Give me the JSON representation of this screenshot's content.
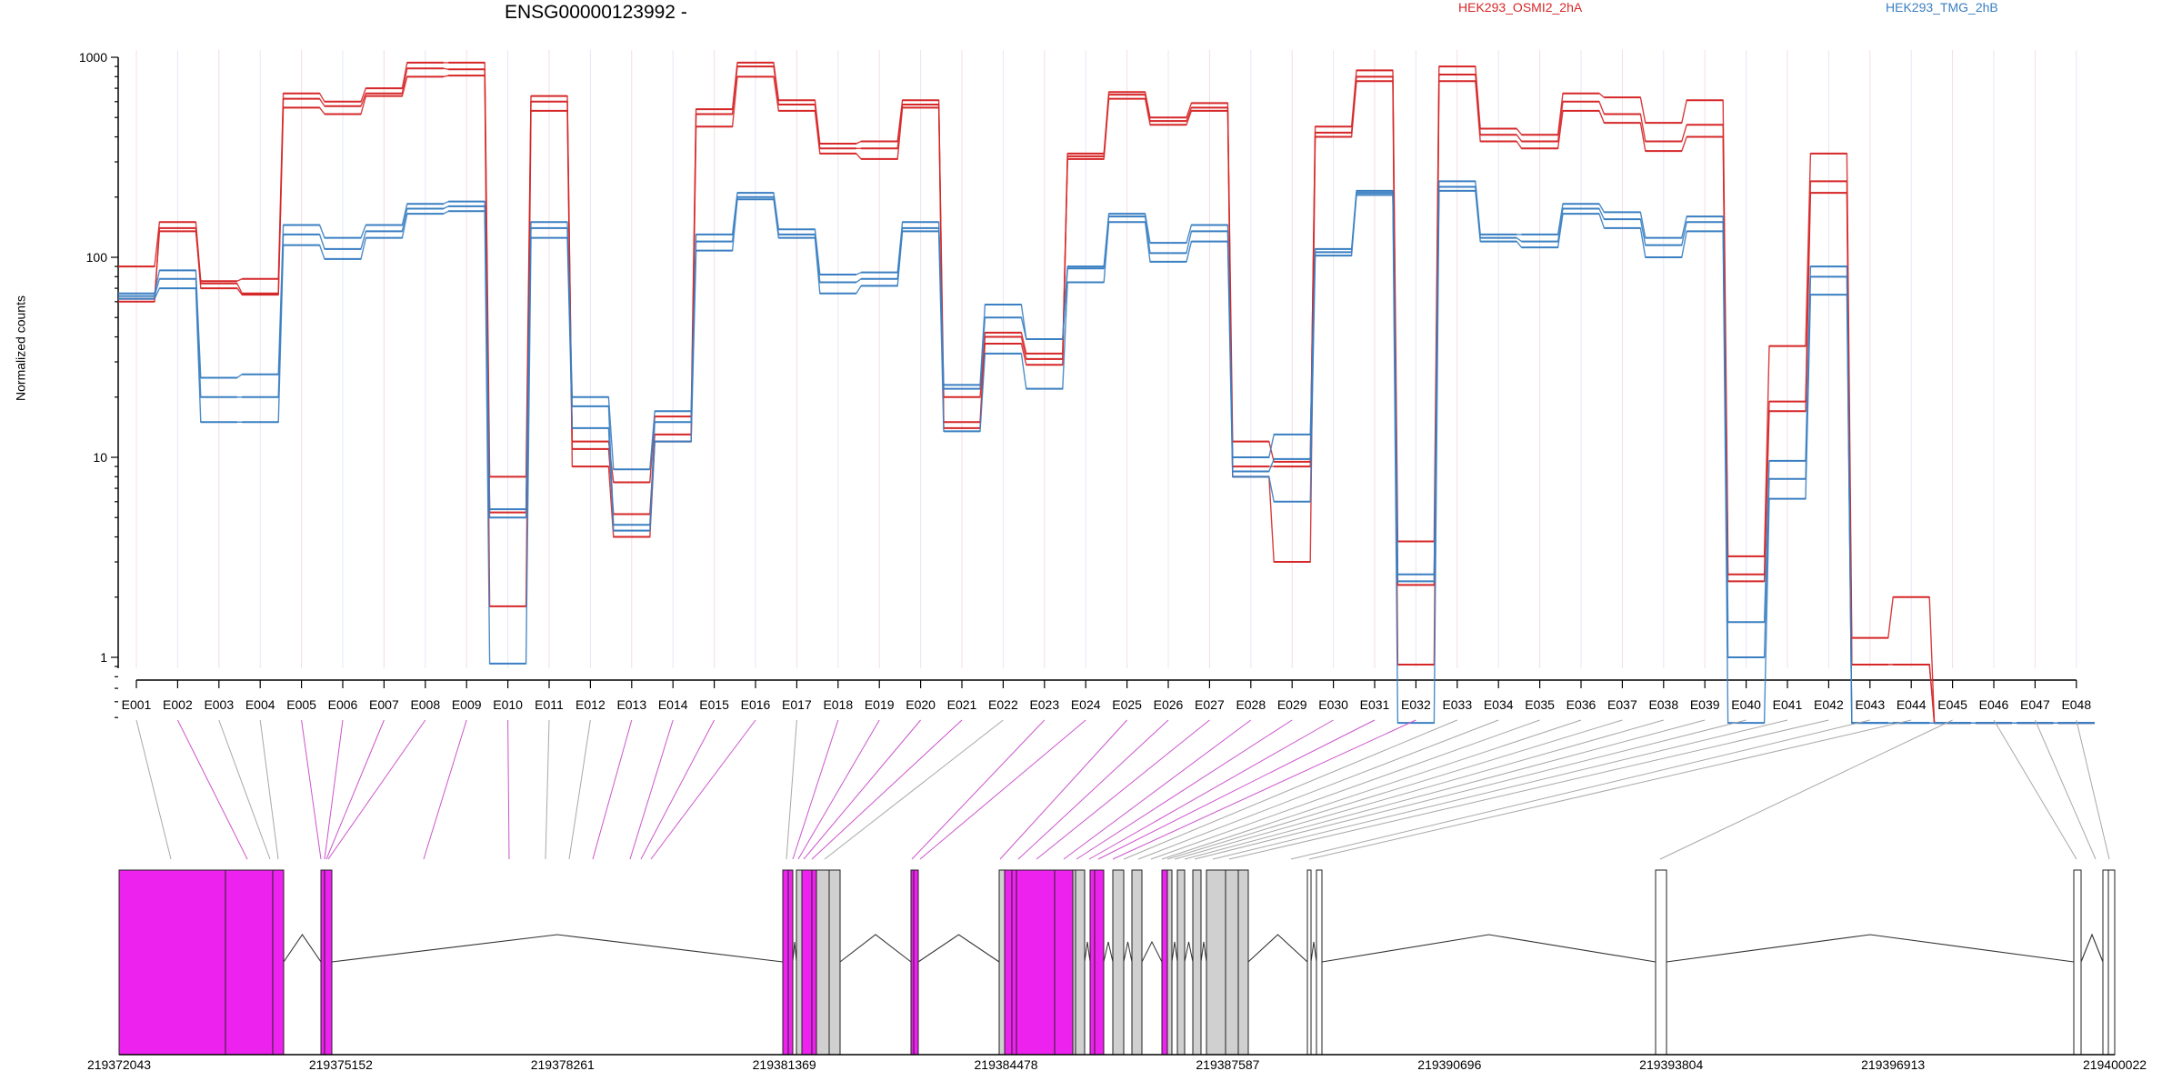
{
  "chart_data": {
    "type": "line",
    "title": "ENSG00000123992 -",
    "ylabel": "Normalized counts",
    "yscale": "log",
    "ylim": [
      0.45,
      1100
    ],
    "yticks": [
      "1",
      "10",
      "100",
      "1000"
    ],
    "ytick_values": [
      1,
      10,
      100,
      1000
    ],
    "x": [
      "E001",
      "E002",
      "E003",
      "E004",
      "E005",
      "E006",
      "E007",
      "E008",
      "E009",
      "E010",
      "E011",
      "E012",
      "E013",
      "E014",
      "E015",
      "E016",
      "E017",
      "E018",
      "E019",
      "E020",
      "E021",
      "E022",
      "E023",
      "E024",
      "E025",
      "E026",
      "E027",
      "E028",
      "E029",
      "E030",
      "E031",
      "E032",
      "E033",
      "E034",
      "E035",
      "E036",
      "E037",
      "E038",
      "E039",
      "E040",
      "E041",
      "E042",
      "E043",
      "E044",
      "E045",
      "E046",
      "E047",
      "E048"
    ],
    "legend": [
      {
        "name": "HEK293_OSMI2_2hA",
        "color": "#d62728"
      },
      {
        "name": "HEK293_TMG_2hB",
        "color": "#3a7fc2"
      }
    ],
    "series": [
      {
        "name": "HEK293_OSMI2_2hA",
        "color": "#d62728",
        "values": [
          90,
          150,
          76,
          78,
          660,
          600,
          700,
          940,
          940,
          8,
          640,
          12,
          7.5,
          16,
          550,
          940,
          610,
          370,
          380,
          610,
          15,
          42,
          33,
          330,
          670,
          500,
          590,
          12,
          9.5,
          450,
          860,
          3.8,
          900,
          440,
          410,
          660,
          630,
          470,
          610,
          3.2,
          36,
          330,
          1.25,
          2.0,
          0.47,
          0.47,
          0.47,
          0.47
        ]
      },
      {
        "name": "HEK293_OSMI2_2hA",
        "color": "#d62728",
        "values": [
          60,
          140,
          70,
          65,
          560,
          520,
          640,
          800,
          810,
          1.8,
          540,
          9,
          4,
          12,
          450,
          800,
          540,
          330,
          310,
          560,
          14,
          37,
          29,
          310,
          620,
          460,
          540,
          8,
          3.0,
          400,
          760,
          0.92,
          760,
          380,
          350,
          540,
          470,
          340,
          400,
          2.4,
          17,
          210,
          0.92,
          0.92,
          0.47,
          0.47,
          0.47,
          0.47
        ]
      },
      {
        "name": "HEK293_OSMI2_2hA",
        "color": "#d62728",
        "values": [
          62,
          135,
          74,
          66,
          620,
          570,
          660,
          880,
          870,
          5.3,
          600,
          11,
          5.2,
          13,
          520,
          900,
          580,
          350,
          350,
          580,
          20,
          40,
          31,
          320,
          650,
          480,
          560,
          9,
          9.0,
          420,
          800,
          2.3,
          820,
          410,
          380,
          600,
          520,
          380,
          460,
          2.6,
          19,
          240,
          0.92,
          0.92,
          0.47,
          0.47,
          0.47,
          0.47
        ]
      },
      {
        "name": "HEK293_TMG_2hB",
        "color": "#3a7fc2",
        "values": [
          66,
          86,
          25,
          26,
          145,
          125,
          145,
          185,
          190,
          5.5,
          150,
          20,
          8.7,
          17,
          130,
          210,
          138,
          82,
          84,
          150,
          23,
          58,
          39,
          90,
          165,
          118,
          145,
          10,
          13,
          110,
          215,
          2.6,
          240,
          130,
          130,
          185,
          168,
          125,
          160,
          1.5,
          9.6,
          90,
          0.47,
          0.47,
          0.47,
          0.47,
          0.47,
          0.47
        ]
      },
      {
        "name": "HEK293_TMG_2hB",
        "color": "#3a7fc2",
        "values": [
          62,
          70,
          15,
          15,
          115,
          98,
          125,
          165,
          170,
          0.93,
          125,
          14,
          4.3,
          12,
          108,
          195,
          125,
          66,
          72,
          135,
          13.5,
          33,
          22,
          75,
          150,
          95,
          120,
          8,
          6,
          102,
          205,
          0.47,
          215,
          120,
          112,
          165,
          140,
          100,
          135,
          0.47,
          6.2,
          65,
          0.47,
          0.47,
          0.47,
          0.47,
          0.47,
          0.47
        ]
      },
      {
        "name": "HEK293_TMG_2hB",
        "color": "#3a7fc2",
        "values": [
          64,
          78,
          20,
          20,
          130,
          110,
          135,
          175,
          180,
          5.0,
          140,
          18,
          4.6,
          15,
          120,
          200,
          130,
          75,
          78,
          140,
          22,
          50,
          39,
          88,
          160,
          105,
          135,
          8.5,
          9.8,
          106,
          210,
          2.4,
          225,
          125,
          120,
          175,
          155,
          115,
          150,
          1.0,
          7.8,
          80,
          0.47,
          0.47,
          0.47,
          0.47,
          0.47,
          0.47
        ]
      }
    ],
    "gene_track": {
      "coordinate_labels": [
        "219372043",
        "219375152",
        "219378261",
        "219381369",
        "219384478",
        "219387587",
        "219390696",
        "219393804",
        "219396913",
        "219400022"
      ]
    }
  }
}
